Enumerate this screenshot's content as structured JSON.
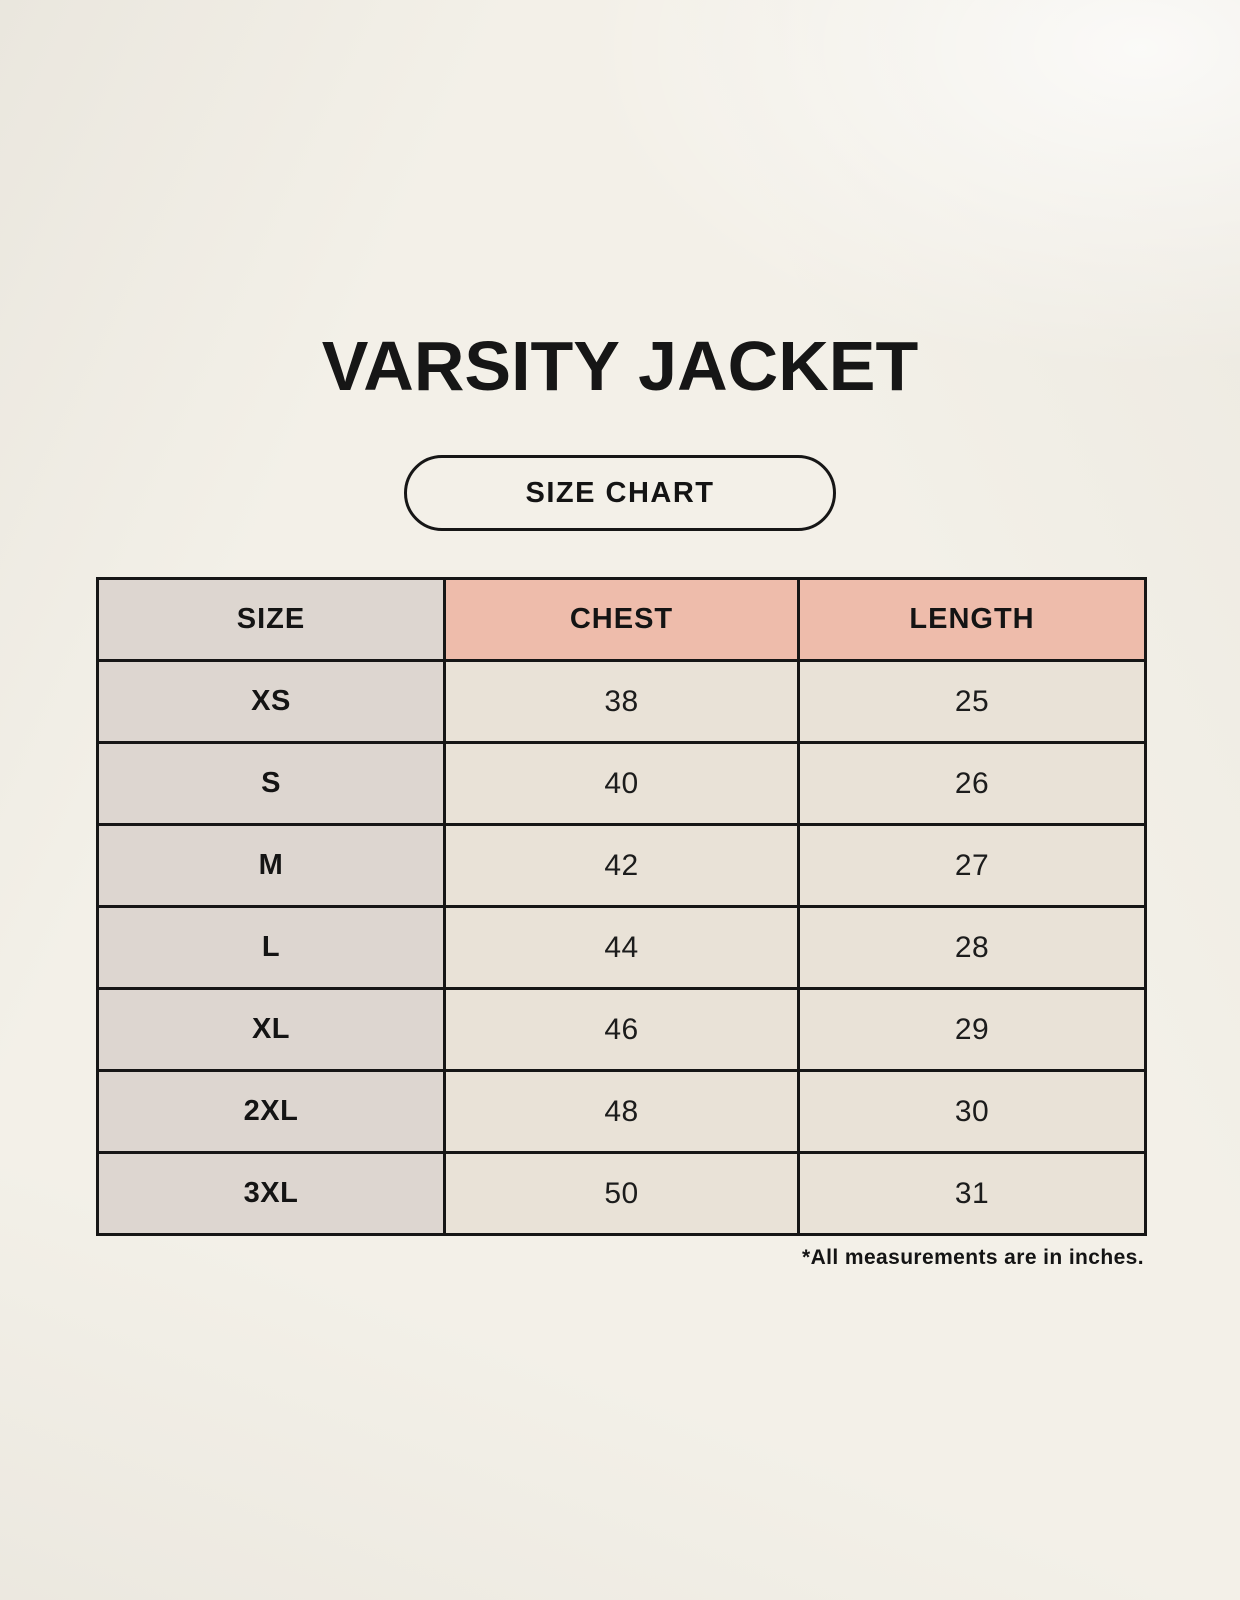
{
  "page": {
    "title": "VARSITY JACKET",
    "badge_label": "SIZE CHART",
    "footnote": "*All measurements are in inches."
  },
  "chart_data": {
    "type": "table",
    "title": "VARSITY JACKET",
    "subtitle": "SIZE CHART",
    "columns": [
      "SIZE",
      "CHEST",
      "LENGTH"
    ],
    "rows": [
      [
        "XS",
        "38",
        "25"
      ],
      [
        "S",
        "40",
        "26"
      ],
      [
        "M",
        "42",
        "27"
      ],
      [
        "L",
        "44",
        "28"
      ],
      [
        "XL",
        "46",
        "29"
      ],
      [
        "2XL",
        "48",
        "30"
      ],
      [
        "3XL",
        "50",
        "31"
      ]
    ],
    "units_note": "*All measurements are in inches."
  },
  "colors": {
    "background": "#f3f0e8",
    "size_column_bg": "#ddd6d0",
    "measure_header_bg": "#eebcab",
    "data_cell_bg": "#e9e2d7",
    "border": "#161616",
    "text": "#141414"
  }
}
